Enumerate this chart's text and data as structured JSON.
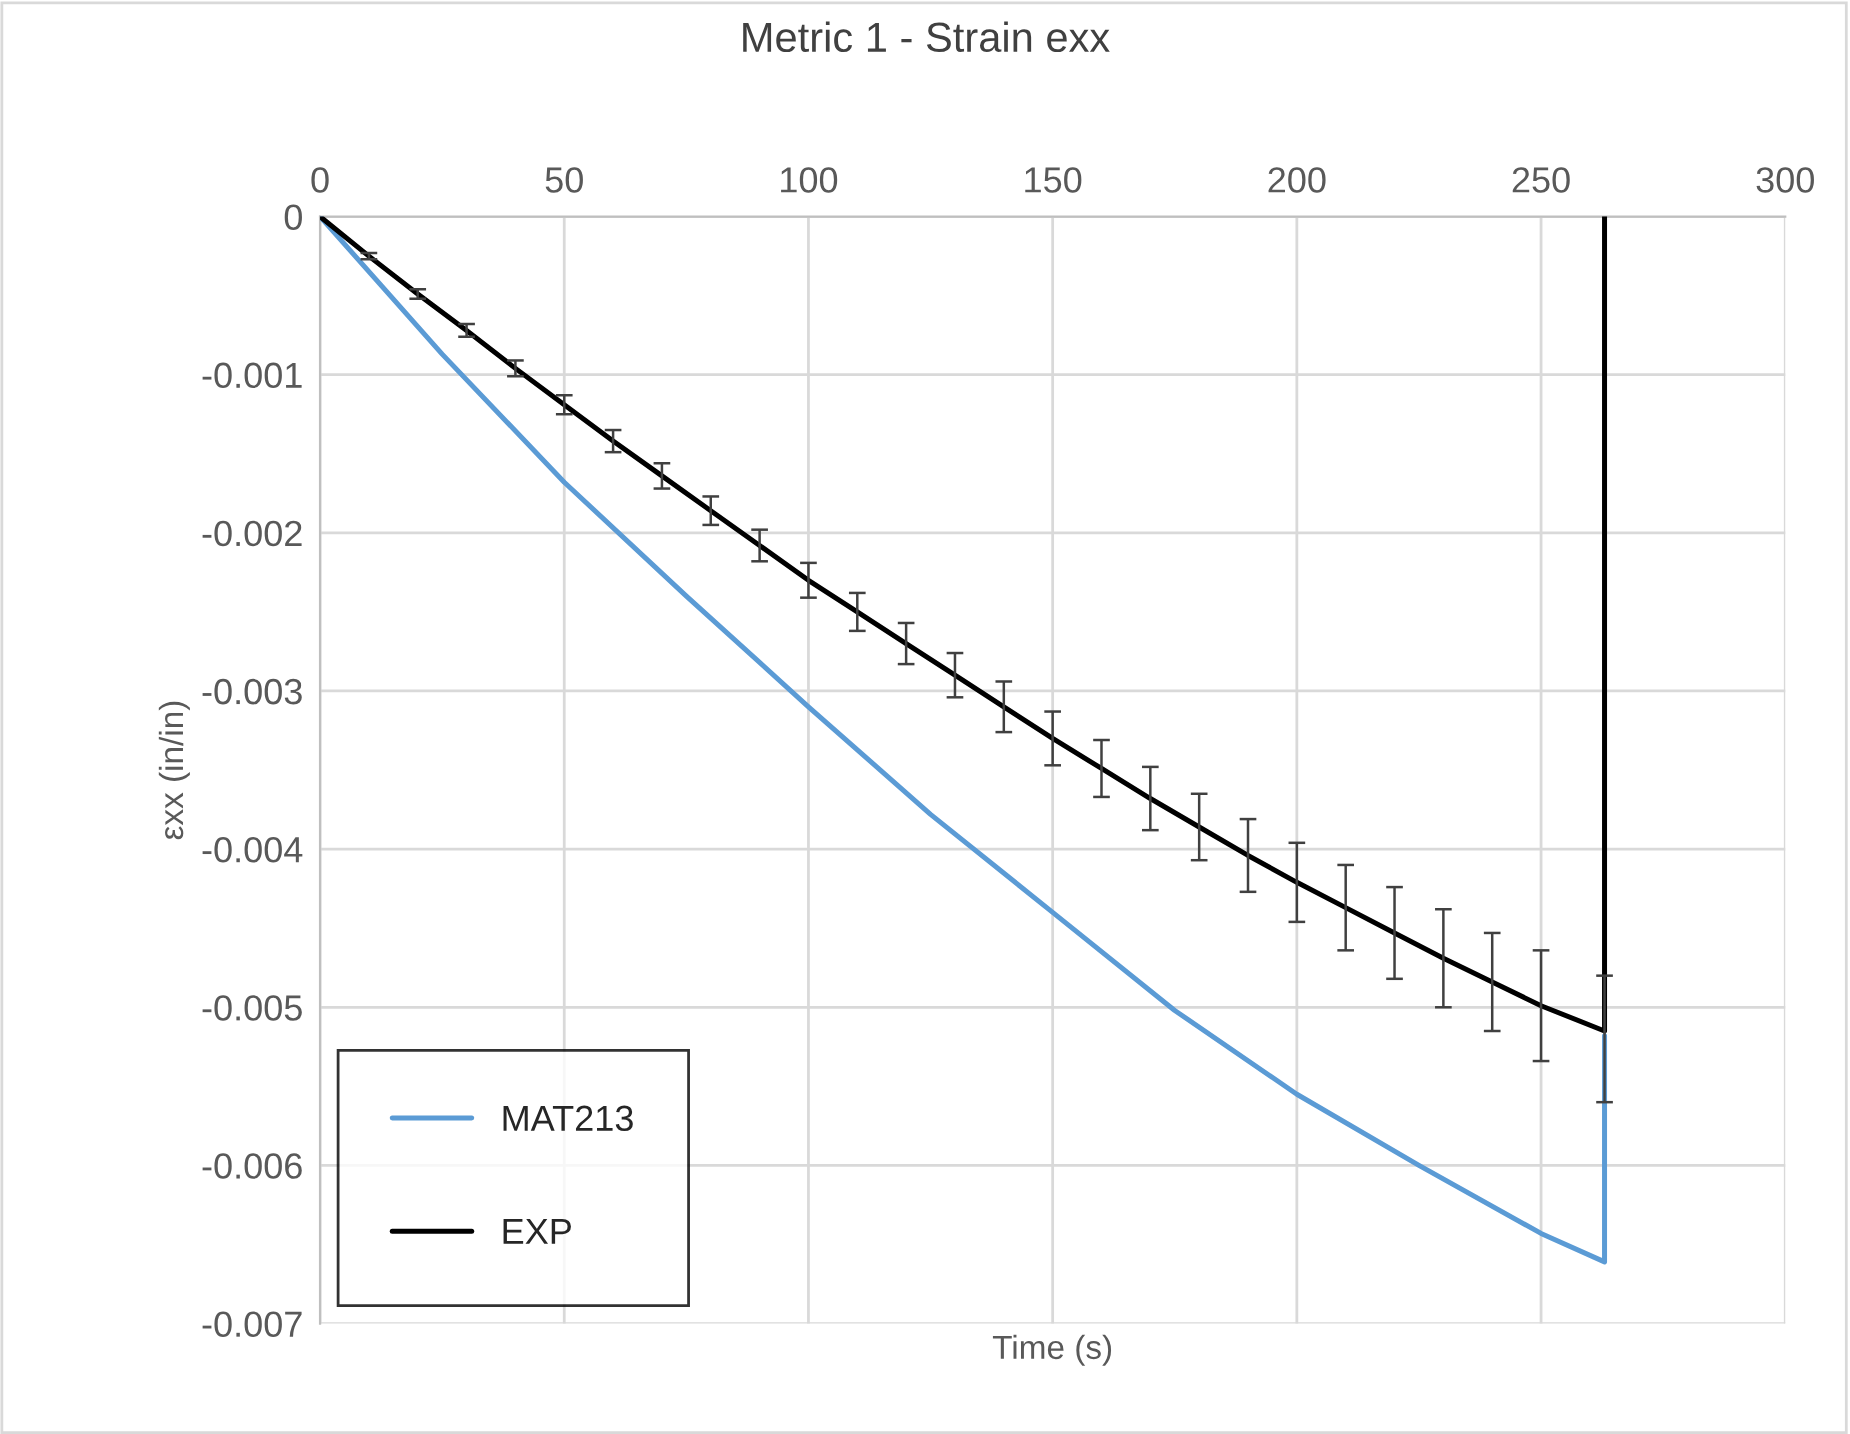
{
  "chart_data": {
    "type": "line",
    "title": "Metric 1 - Strain exx",
    "xlabel": "Time (s)",
    "ylabel": "εxx (in/in)",
    "xlim": [
      0,
      300
    ],
    "xticks": [
      0,
      50,
      100,
      150,
      200,
      250,
      300
    ],
    "ylim": [
      -0.007,
      0
    ],
    "yticks": [
      0,
      -0.001,
      -0.002,
      -0.003,
      -0.004,
      -0.005,
      -0.006,
      -0.007
    ],
    "grid": true,
    "legend": "bottom left",
    "marker": "none",
    "line_style": "solid",
    "series": [
      {
        "name": "MAT213",
        "color": "#5b9bd5",
        "x": [
          0,
          25,
          50,
          75,
          100,
          125,
          150,
          175,
          200,
          225,
          250,
          263,
          263
        ],
        "values": [
          0,
          -0.00087,
          -0.00168,
          -0.0024,
          -0.0031,
          -0.00378,
          -0.0044,
          -0.00502,
          -0.00555,
          -0.006,
          -0.00643,
          -0.00661,
          -0.00518
        ]
      },
      {
        "name": "EXP",
        "color": "#000000",
        "x": [
          0,
          10,
          20,
          30,
          40,
          50,
          60,
          70,
          80,
          90,
          100,
          110,
          120,
          130,
          140,
          150,
          160,
          170,
          180,
          190,
          200,
          210,
          220,
          230,
          240,
          250,
          263,
          263
        ],
        "values": [
          0,
          -0.00025,
          -0.00049,
          -0.00072,
          -0.00096,
          -0.00119,
          -0.00142,
          -0.00164,
          -0.00186,
          -0.00208,
          -0.0023,
          -0.0025,
          -0.0027,
          -0.0029,
          -0.0031,
          -0.0033,
          -0.00349,
          -0.00368,
          -0.00386,
          -0.00404,
          -0.00421,
          -0.00437,
          -0.00453,
          -0.00469,
          -0.00484,
          -0.00499,
          -0.00515,
          0
        ],
        "errors": [
          null,
          2e-05,
          3e-05,
          4e-05,
          5e-05,
          6e-05,
          7e-05,
          8e-05,
          9e-05,
          0.0001,
          0.00011,
          0.00012,
          0.00013,
          0.00014,
          0.00016,
          0.00017,
          0.00018,
          0.0002,
          0.00021,
          0.00023,
          0.00025,
          0.00027,
          0.00029,
          0.00031,
          0.00031,
          0.00035,
          [
            -0.0056,
            -0.0048
          ],
          null
        ]
      }
    ]
  }
}
